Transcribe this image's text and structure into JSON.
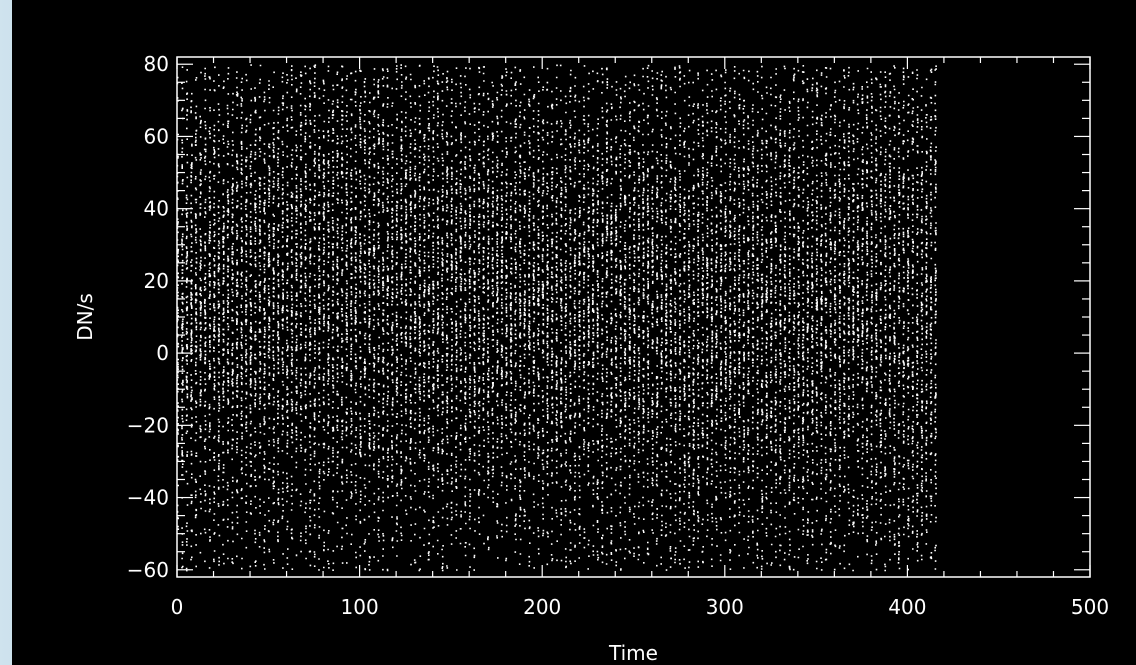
{
  "colors": {
    "background": "#000000",
    "foreground": "#ffffff",
    "desktop": "#6aa3c9"
  },
  "chart_data": {
    "type": "scatter",
    "title": "",
    "xlabel": "Time",
    "ylabel": "DN/s",
    "xlim": [
      0,
      500
    ],
    "ylim": [
      -62,
      82
    ],
    "x_ticks": [
      0,
      100,
      200,
      300,
      400,
      500
    ],
    "y_ticks": [
      -60,
      -40,
      -20,
      0,
      20,
      40,
      60,
      80
    ],
    "x_tick_labels": [
      "0",
      "100",
      "200",
      "300",
      "400",
      "500"
    ],
    "y_tick_labels": [
      "−60",
      "−40",
      "−20",
      "0",
      "20",
      "40",
      "60",
      "80"
    ],
    "grid": false,
    "legend": "none",
    "series": [
      {
        "x_range": [
          0,
          416
        ],
        "y_range": [
          -60,
          80
        ],
        "x_step": 2.5,
        "samples_per_column": 115,
        "center_by_x": [
          [
            0,
            12
          ],
          [
            100,
            20
          ],
          [
            200,
            15
          ],
          [
            300,
            12
          ],
          [
            416,
            14
          ]
        ],
        "spread_by_x": [
          [
            0,
            28
          ],
          [
            100,
            34
          ],
          [
            200,
            30
          ],
          [
            300,
            32
          ],
          [
            416,
            35
          ]
        ],
        "color": "#ffffff"
      }
    ]
  }
}
